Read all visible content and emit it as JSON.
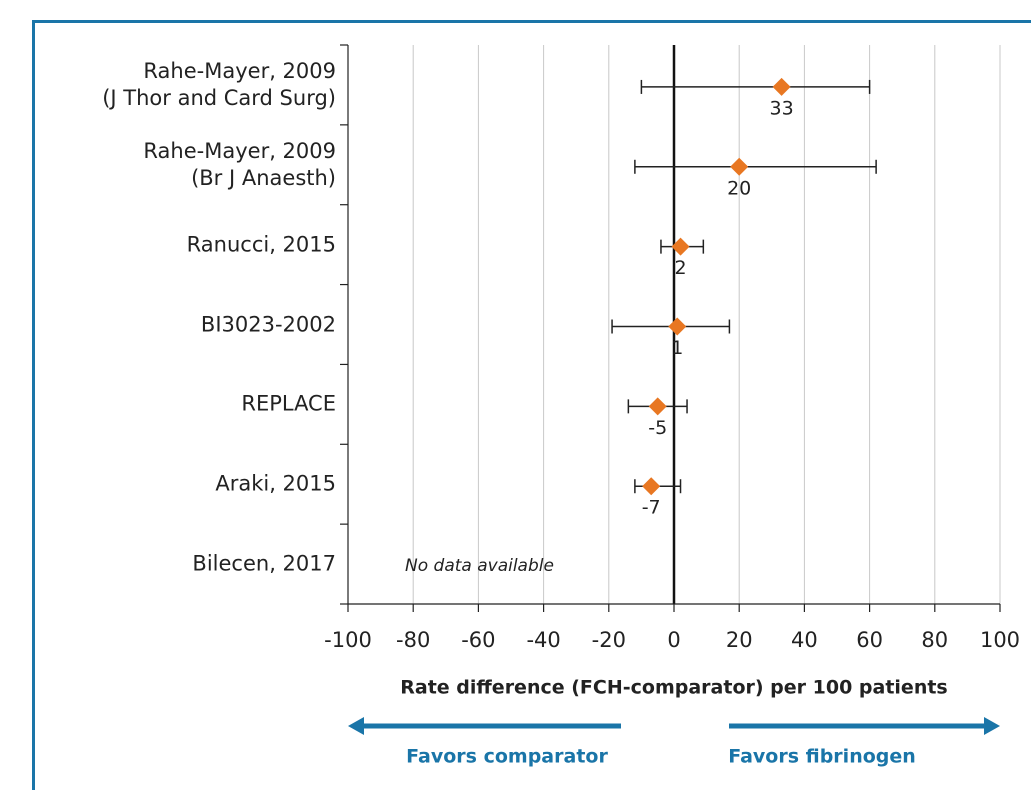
{
  "chart_data": {
    "type": "forest",
    "categories": [
      "Rahe-Mayer, 2009\n(J Thor and Card Surg)",
      "Rahe-Mayer, 2009\n(Br J Anaesth)",
      "Ranucci, 2015",
      "BI3023-2002",
      "REPLACE",
      "Araki, 2015",
      "Bilecen, 2017"
    ],
    "values": [
      33,
      20,
      2,
      1,
      -5,
      -7,
      null
    ],
    "lower": [
      -10,
      -12,
      -4,
      -19,
      -14,
      -12,
      null
    ],
    "upper": [
      60,
      62,
      9,
      17,
      4,
      2,
      null
    ],
    "color": "#e87722",
    "xlim": [
      -100,
      100
    ],
    "xticks": [
      -100,
      -80,
      -60,
      -40,
      -20,
      0,
      20,
      40,
      60,
      80,
      100
    ],
    "grid": true,
    "xlabel": "Rate difference (FCH-comparator) per 100 patients",
    "annotations": [
      "No data available"
    ],
    "arrow_labels": [
      "Favors comparator",
      "Favors fibrinogen"
    ]
  }
}
